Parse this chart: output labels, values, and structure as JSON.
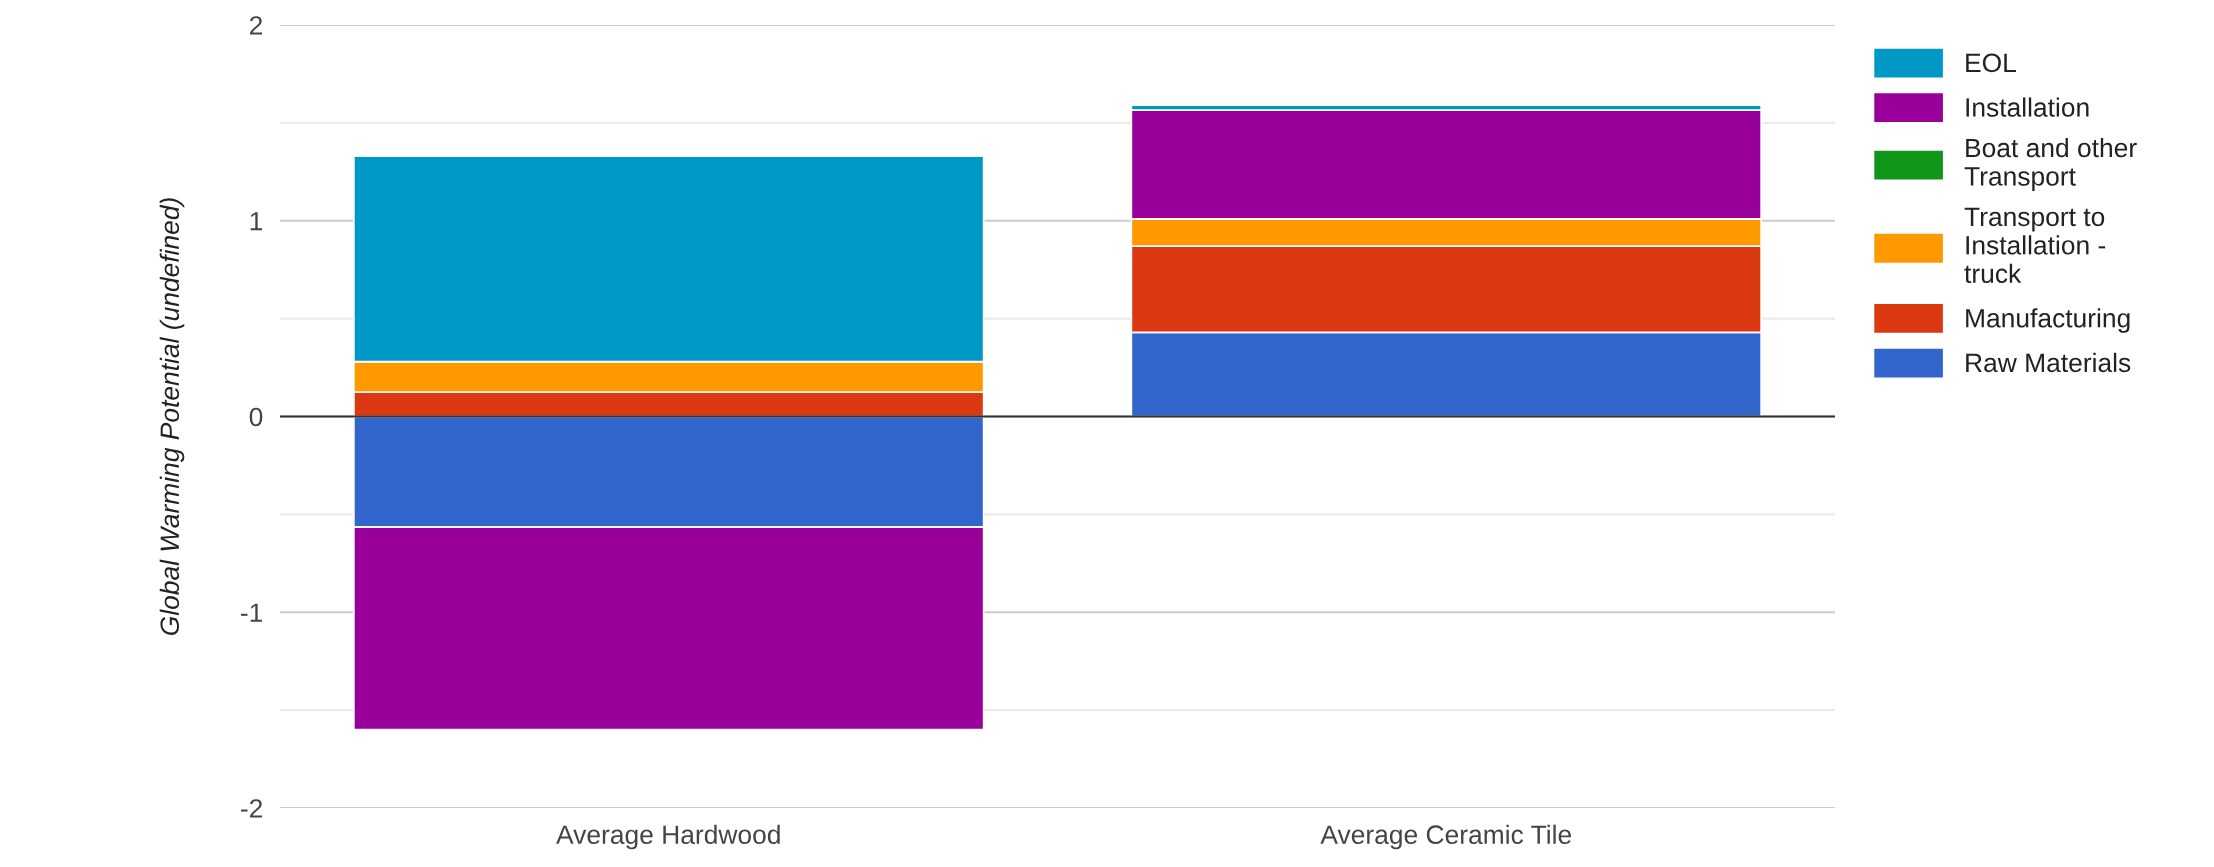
{
  "chart_data": {
    "type": "bar",
    "stacked": true,
    "ylabel": "Global Warming Potential (undefined)",
    "categories": [
      "Average Hardwood",
      "Average Ceramic Tile"
    ],
    "series": [
      {
        "name": "Raw Materials",
        "color": "#3366cc",
        "values": [
          -0.565,
          0.43
        ]
      },
      {
        "name": "Manufacturing",
        "color": "#dc3912",
        "values": [
          0.125,
          0.44
        ]
      },
      {
        "name": "Transport to Installation - truck",
        "color": "#ff9900",
        "values": [
          0.155,
          0.14
        ]
      },
      {
        "name": "Boat and other Transport",
        "color": "#109618",
        "values": [
          0,
          0
        ]
      },
      {
        "name": "Installation",
        "color": "#990099",
        "values": [
          -1.035,
          0.555
        ]
      },
      {
        "name": "EOL",
        "color": "#0099c6",
        "values": [
          1.05,
          0.025
        ]
      }
    ],
    "ylim": [
      -2,
      2
    ],
    "yticks": [
      -2,
      {
        "value": -1.5,
        "label": null
      },
      -1,
      {
        "value": -0.5,
        "label": null
      },
      0,
      {
        "value": 0.5,
        "label": null
      },
      1,
      {
        "value": 1.5,
        "label": null
      },
      2
    ],
    "grid": "y",
    "legend": "right"
  }
}
